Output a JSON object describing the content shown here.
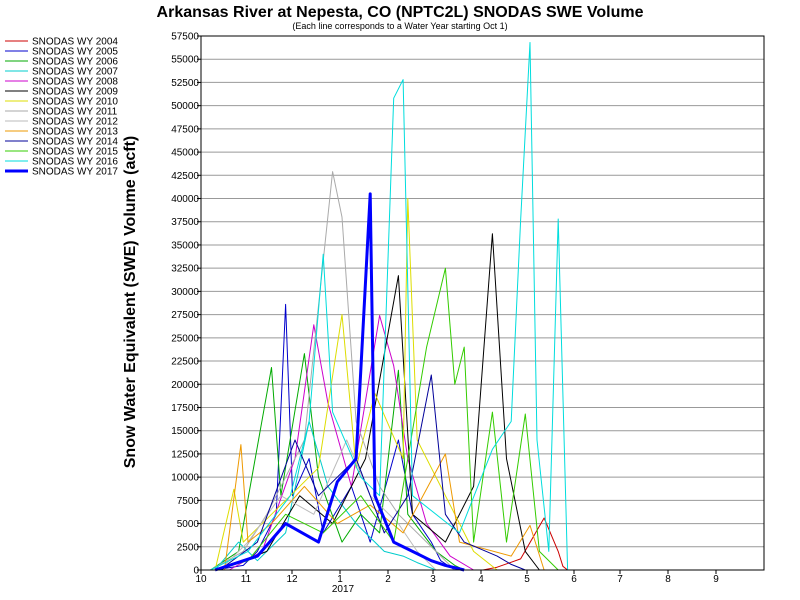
{
  "chart_data": {
    "type": "line",
    "title": "Arkansas River at Nepesta, CO (NPTC2L) SNODAS SWE Volume",
    "subtitle": "(Each line corresponds to a Water Year starting Oct 1)",
    "ylabel": "Snow Water Equivalent (SWE) Volume (acft)",
    "xlabel": "",
    "x_ticks": [
      "10",
      "11",
      "12",
      "1",
      "2",
      "3",
      "4",
      "5",
      "6",
      "7",
      "8",
      "9"
    ],
    "x_year_label": "2017",
    "ylim": [
      0,
      57500
    ],
    "y_ticks": [
      "0",
      "2500",
      "5000",
      "7500",
      "10000",
      "12500",
      "15000",
      "17500",
      "20000",
      "22500",
      "25000",
      "27500",
      "30000",
      "32500",
      "35000",
      "37500",
      "40000",
      "42500",
      "45000",
      "47500",
      "50000",
      "52500",
      "55000",
      "57500"
    ],
    "grid": true,
    "legend_position": "left",
    "series": [
      {
        "name": "SNODAS WY 2004",
        "color": "#cc0000",
        "points": [
          [
            6.0,
            0
          ],
          [
            6.3,
            300
          ],
          [
            6.8,
            1200
          ],
          [
            7.3,
            5600
          ],
          [
            7.6,
            2000
          ],
          [
            7.7,
            400
          ],
          [
            7.8,
            0
          ]
        ]
      },
      {
        "name": "SNODAS WY 2005",
        "color": "#0000cc",
        "points": [
          [
            0.3,
            0
          ],
          [
            0.9,
            500
          ],
          [
            1.2,
            2000
          ],
          [
            1.6,
            6000
          ],
          [
            1.8,
            28600
          ],
          [
            1.95,
            8000
          ],
          [
            2.3,
            12000
          ],
          [
            2.6,
            4000
          ],
          [
            3.2,
            9000
          ],
          [
            3.6,
            3000
          ],
          [
            4.2,
            14000
          ],
          [
            4.5,
            6000
          ],
          [
            4.9,
            3000
          ],
          [
            5.1,
            1000
          ],
          [
            5.4,
            0
          ]
        ]
      },
      {
        "name": "SNODAS WY 2006",
        "color": "#00aa00",
        "points": [
          [
            0.2,
            0
          ],
          [
            0.8,
            2000
          ],
          [
            1.5,
            21800
          ],
          [
            1.7,
            8000
          ],
          [
            2.2,
            23300
          ],
          [
            2.5,
            10000
          ],
          [
            3.0,
            3000
          ],
          [
            3.4,
            6000
          ],
          [
            3.8,
            4000
          ],
          [
            4.2,
            21500
          ],
          [
            4.4,
            6000
          ],
          [
            5.0,
            2000
          ],
          [
            5.4,
            500
          ],
          [
            5.6,
            0
          ]
        ]
      },
      {
        "name": "SNODAS WY 2007",
        "color": "#00cccc",
        "points": [
          [
            0.3,
            0
          ],
          [
            0.8,
            3000
          ],
          [
            1.2,
            1000
          ],
          [
            1.8,
            4000
          ],
          [
            2.3,
            16000
          ],
          [
            2.7,
            9000
          ],
          [
            3.3,
            5000
          ],
          [
            3.9,
            2000
          ],
          [
            4.3,
            1500
          ],
          [
            4.6,
            800
          ],
          [
            5.0,
            0
          ]
        ]
      },
      {
        "name": "SNODAS WY 2008",
        "color": "#cc00cc",
        "points": [
          [
            0.6,
            0
          ],
          [
            1.3,
            2000
          ],
          [
            2.0,
            12000
          ],
          [
            2.4,
            26400
          ],
          [
            2.7,
            18000
          ],
          [
            3.2,
            9000
          ],
          [
            3.8,
            27400
          ],
          [
            4.1,
            22000
          ],
          [
            4.4,
            12000
          ],
          [
            4.8,
            5000
          ],
          [
            5.3,
            1500
          ],
          [
            5.8,
            0
          ]
        ]
      },
      {
        "name": "SNODAS WY 2009",
        "color": "#000000",
        "points": [
          [
            0.4,
            0
          ],
          [
            1.4,
            2000
          ],
          [
            2.1,
            8000
          ],
          [
            2.8,
            5000
          ],
          [
            3.5,
            12000
          ],
          [
            4.2,
            31700
          ],
          [
            4.5,
            6000
          ],
          [
            5.2,
            3000
          ],
          [
            5.8,
            9000
          ],
          [
            6.2,
            36200
          ],
          [
            6.5,
            12000
          ],
          [
            6.9,
            2000
          ],
          [
            7.2,
            0
          ]
        ]
      },
      {
        "name": "SNODAS WY 2010",
        "color": "#dddd00",
        "points": [
          [
            0.3,
            0
          ],
          [
            0.7,
            8700
          ],
          [
            0.9,
            3000
          ],
          [
            1.5,
            6000
          ],
          [
            2.5,
            11000
          ],
          [
            3.0,
            27500
          ],
          [
            3.3,
            11000
          ],
          [
            3.7,
            19000
          ],
          [
            4.3,
            12000
          ],
          [
            4.4,
            40000
          ],
          [
            4.6,
            14000
          ],
          [
            5.2,
            8000
          ],
          [
            5.8,
            2000
          ],
          [
            6.3,
            0
          ]
        ]
      },
      {
        "name": "SNODAS WY 2011",
        "color": "#aaaaaa",
        "points": [
          [
            0.2,
            0
          ],
          [
            0.9,
            2000
          ],
          [
            1.4,
            6000
          ],
          [
            2.2,
            14000
          ],
          [
            2.8,
            42900
          ],
          [
            3.0,
            38000
          ],
          [
            3.3,
            16000
          ],
          [
            3.8,
            9000
          ],
          [
            4.2,
            6000
          ],
          [
            4.8,
            3000
          ],
          [
            5.4,
            0
          ]
        ]
      },
      {
        "name": "SNODAS WY 2012",
        "color": "#bbbbbb",
        "points": [
          [
            0.4,
            0
          ],
          [
            1.0,
            3000
          ],
          [
            1.7,
            8000
          ],
          [
            2.4,
            6000
          ],
          [
            3.1,
            14000
          ],
          [
            3.6,
            8000
          ],
          [
            4.2,
            5000
          ],
          [
            4.6,
            2000
          ],
          [
            5.0,
            0
          ]
        ]
      },
      {
        "name": "SNODAS WY 2013",
        "color": "#ee9900",
        "points": [
          [
            0.5,
            0
          ],
          [
            0.85,
            13500
          ],
          [
            1.0,
            3000
          ],
          [
            1.5,
            5000
          ],
          [
            2.2,
            9000
          ],
          [
            2.9,
            5000
          ],
          [
            3.6,
            7000
          ],
          [
            4.3,
            4000
          ],
          [
            5.2,
            12500
          ],
          [
            5.5,
            3000
          ],
          [
            6.6,
            1500
          ],
          [
            7.0,
            4800
          ],
          [
            7.3,
            0
          ]
        ]
      },
      {
        "name": "SNODAS WY 2014",
        "color": "#000099",
        "points": [
          [
            0.4,
            0
          ],
          [
            1.2,
            3000
          ],
          [
            2.0,
            14000
          ],
          [
            2.5,
            8000
          ],
          [
            3.3,
            12000
          ],
          [
            3.9,
            4000
          ],
          [
            4.4,
            8000
          ],
          [
            4.9,
            21000
          ],
          [
            5.2,
            6000
          ],
          [
            5.6,
            3000
          ],
          [
            6.3,
            1500
          ],
          [
            6.6,
            600
          ],
          [
            6.9,
            0
          ]
        ]
      },
      {
        "name": "SNODAS WY 2015",
        "color": "#33cc00",
        "points": [
          [
            0.3,
            0
          ],
          [
            1.0,
            1000
          ],
          [
            1.8,
            6000
          ],
          [
            2.6,
            4000
          ],
          [
            3.4,
            8000
          ],
          [
            4.1,
            3000
          ],
          [
            4.8,
            24000
          ],
          [
            5.2,
            32500
          ],
          [
            5.4,
            20000
          ],
          [
            5.6,
            24000
          ],
          [
            5.8,
            3000
          ],
          [
            6.2,
            17000
          ],
          [
            6.5,
            3000
          ],
          [
            6.9,
            16800
          ],
          [
            7.2,
            2000
          ],
          [
            7.6,
            0
          ]
        ]
      },
      {
        "name": "SNODAS WY 2016",
        "color": "#00dddd",
        "points": [
          [
            0.2,
            0
          ],
          [
            1.0,
            2000
          ],
          [
            1.9,
            8000
          ],
          [
            2.3,
            16000
          ],
          [
            2.6,
            34000
          ],
          [
            2.8,
            17000
          ],
          [
            3.4,
            10000
          ],
          [
            3.8,
            8000
          ],
          [
            4.1,
            50800
          ],
          [
            4.3,
            52800
          ],
          [
            4.5,
            8000
          ],
          [
            5.5,
            4000
          ],
          [
            6.2,
            13000
          ],
          [
            6.6,
            16000
          ],
          [
            6.8,
            37600
          ],
          [
            7.0,
            56800
          ],
          [
            7.15,
            14000
          ],
          [
            7.4,
            2000
          ],
          [
            7.6,
            37800
          ],
          [
            7.8,
            0
          ]
        ]
      },
      {
        "name": "SNODAS WY 2017",
        "color": "#0000ff",
        "points": [
          [
            0.3,
            0
          ],
          [
            1.2,
            1500
          ],
          [
            1.8,
            5000
          ],
          [
            2.5,
            3000
          ],
          [
            2.9,
            9500
          ],
          [
            3.3,
            12000
          ],
          [
            3.6,
            40500
          ],
          [
            3.7,
            8000
          ],
          [
            4.1,
            3000
          ],
          [
            4.5,
            2000
          ],
          [
            4.9,
            1000
          ],
          [
            5.2,
            500
          ],
          [
            5.6,
            0
          ]
        ]
      }
    ]
  }
}
